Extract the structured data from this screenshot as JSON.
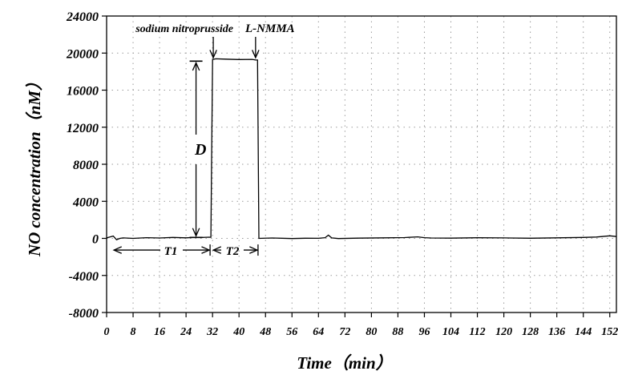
{
  "chart_data": {
    "type": "line",
    "xlabel": "Time（min）",
    "ylabel": "NO concentration（nM）",
    "xlim": [
      0,
      154
    ],
    "ylim": [
      -8000,
      24000
    ],
    "x_ticks": [
      0,
      8,
      16,
      24,
      32,
      40,
      48,
      56,
      64,
      72,
      80,
      88,
      96,
      104,
      112,
      120,
      128,
      136,
      144,
      152
    ],
    "x_tick_labels": [
      "0",
      "8",
      "16",
      "24",
      "32",
      "40",
      "48",
      "56",
      "64",
      "72",
      "80",
      "88",
      "96",
      "104",
      "112",
      "120",
      "128",
      "136",
      "144",
      "152"
    ],
    "y_ticks": [
      24000,
      20000,
      16000,
      12000,
      8000,
      4000,
      0,
      -4000,
      -8000
    ],
    "y_tick_labels": [
      "24000",
      "20000",
      "16000",
      "12000",
      "8000",
      "4000",
      "0",
      "-4000",
      "-8000"
    ],
    "grid": true,
    "series": [
      {
        "x": [
          0,
          2,
          3,
          4,
          5,
          8,
          12,
          16,
          20,
          24,
          27,
          29,
          31,
          31.5,
          32,
          33,
          36,
          40,
          44,
          45,
          45.6,
          46,
          50,
          56,
          60,
          64,
          66,
          67,
          68,
          70,
          76,
          84,
          90,
          94,
          96,
          98,
          104,
          112,
          120,
          128,
          136,
          144,
          148,
          152,
          154
        ],
        "y": [
          50,
          250,
          -150,
          0,
          50,
          0,
          80,
          40,
          100,
          60,
          120,
          100,
          130,
          120,
          19300,
          19380,
          19350,
          19300,
          19320,
          19250,
          19250,
          0,
          40,
          -20,
          20,
          10,
          80,
          350,
          50,
          -20,
          30,
          60,
          90,
          160,
          80,
          40,
          30,
          70,
          50,
          20,
          60,
          100,
          150,
          280,
          200
        ],
        "color": "#000000"
      }
    ],
    "annotations": {
      "sodium": "sodium nitroprusside",
      "lnmma": "L-NMMA",
      "d_label": "D",
      "t1_label": "T1",
      "t2_label": "T2"
    },
    "annotation_points": {
      "sodium_arrow_x": 31.5,
      "lnmma_arrow_x": 45,
      "d_x": 27.5,
      "d_top": 19300,
      "d_bottom": 100,
      "t1_range": [
        1,
        31.5
      ],
      "t2_range": [
        32,
        45.5
      ],
      "t_arrow_y": -1000
    }
  }
}
